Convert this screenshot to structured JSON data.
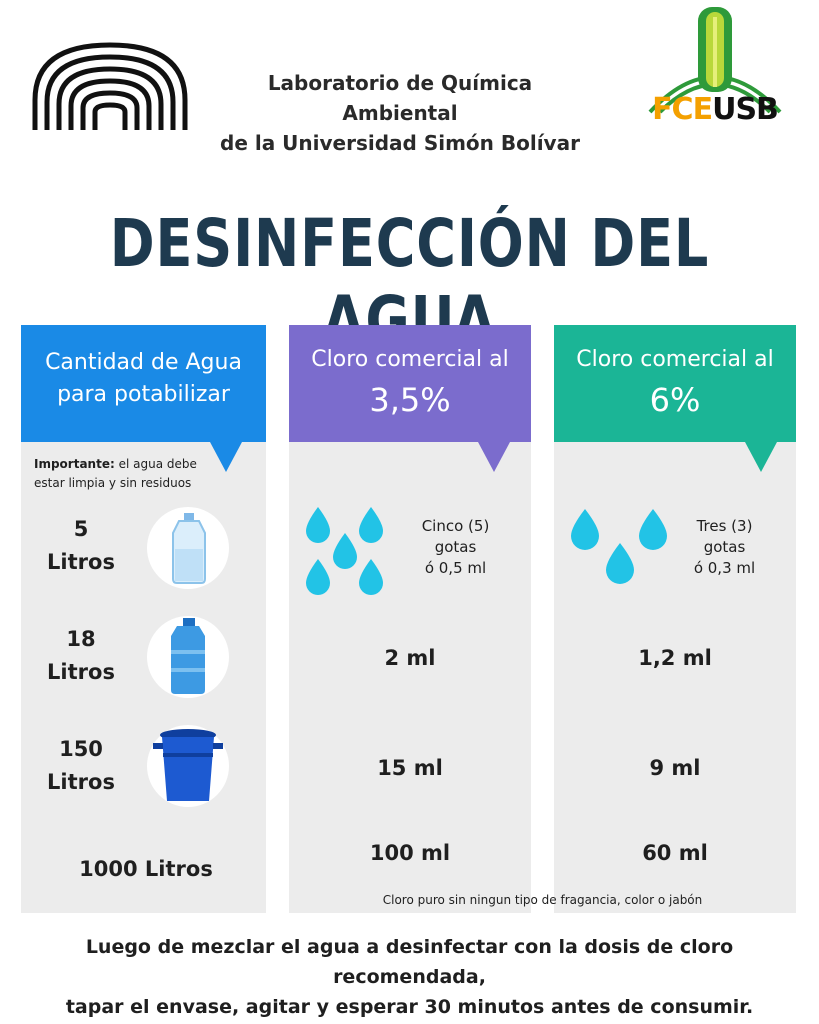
{
  "header": {
    "lab_line1": "Laboratorio de Química Ambiental",
    "lab_line2": "de la Universidad Simón Bolívar",
    "logo_text_fce": "FCE",
    "logo_text_usb": "USB"
  },
  "title": "DESINFECCIÓN DEL AGUA",
  "columns": {
    "water": {
      "line1": "Cantidad de Agua",
      "line2": "para potabilizar",
      "color": "#1a8ae6"
    },
    "chlorine_35": {
      "line1": "Cloro comercial al",
      "percent": "3,5%",
      "color": "#7b6ccd"
    },
    "chlorine_6": {
      "line1": "Cloro comercial al",
      "percent": "6%",
      "color": "#1bb596"
    }
  },
  "note": {
    "bold": "Importante:",
    "text1": " el agua debe",
    "text2": "estar limpia y sin residuos"
  },
  "rows": [
    {
      "qty_num": "5",
      "qty_unit": "Litros",
      "icon": "water-bottle-5l-icon",
      "dose_35": {
        "line1": "Cinco (5)",
        "line2": "gotas",
        "line3": "ó 0,5 ml"
      },
      "dose_6": {
        "line1": "Tres (3)",
        "line2": "gotas",
        "line3": "ó 0,3 ml"
      }
    },
    {
      "qty_num": "18",
      "qty_unit": "Litros",
      "icon": "water-jug-18l-icon",
      "dose_35": "2 ml",
      "dose_6": "1,2 ml"
    },
    {
      "qty_num": "150",
      "qty_unit": "Litros",
      "icon": "water-drum-150l-icon",
      "dose_35": "15 ml",
      "dose_6": "9 ml"
    },
    {
      "qty_full": "1000 Litros",
      "dose_35": "100 ml",
      "dose_6": "60 ml"
    }
  ],
  "footnote": "Cloro puro sin ningun tipo de fragancia, color o jabón",
  "bottom": {
    "line1": "Luego de mezclar el agua a desinfectar con la dosis de cloro recomendada,",
    "line2": "tapar el envase, agitar y esperar 30 minutos antes de consumir."
  },
  "colors": {
    "title": "#1e3a4f",
    "drop": "#22c3e6",
    "panel": "#ececec"
  }
}
